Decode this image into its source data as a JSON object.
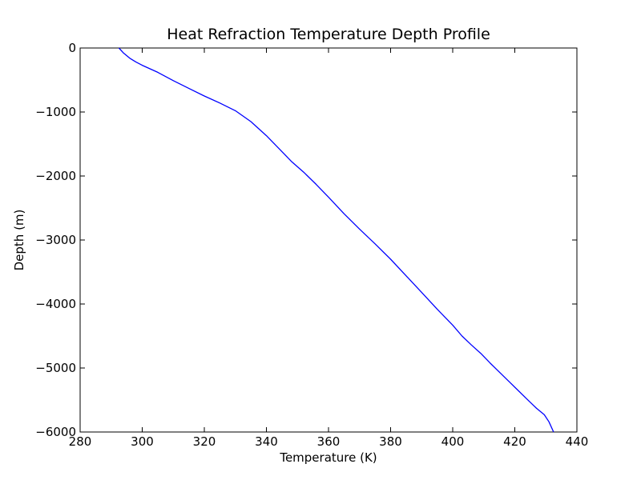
{
  "chart_data": {
    "type": "line",
    "title": "Heat Refraction Temperature Depth Profile",
    "xlabel": "Temperature (K)",
    "ylabel": "Depth (m)",
    "xlim": [
      280,
      440
    ],
    "ylim": [
      -6000,
      0
    ],
    "xticks": [
      280,
      300,
      320,
      340,
      360,
      380,
      400,
      420,
      440
    ],
    "yticks": [
      0,
      -1000,
      -2000,
      -3000,
      -4000,
      -5000,
      -6000
    ],
    "xtick_labels": [
      "280",
      "300",
      "320",
      "340",
      "360",
      "380",
      "400",
      "420",
      "440"
    ],
    "ytick_labels": [
      "0",
      "−1000",
      "−2000",
      "−3000",
      "−4000",
      "−5000",
      "−6000"
    ],
    "grid": false,
    "line_color": "#0000ff",
    "series": [
      {
        "x": [
          292.5,
          294,
          296,
          298,
          300,
          305,
          310,
          315,
          320,
          325,
          330,
          335,
          340,
          345,
          348,
          352,
          356,
          360,
          365,
          370,
          375,
          380,
          385,
          390,
          395,
          400,
          403,
          406,
          409,
          412,
          416,
          420,
          424,
          427,
          429.5,
          431,
          432.5
        ],
        "y": [
          0,
          -80,
          -160,
          -220,
          -270,
          -380,
          -510,
          -630,
          -750,
          -860,
          -980,
          -1150,
          -1370,
          -1620,
          -1770,
          -1940,
          -2130,
          -2330,
          -2590,
          -2830,
          -3060,
          -3300,
          -3560,
          -3820,
          -4080,
          -4330,
          -4500,
          -4640,
          -4770,
          -4920,
          -5110,
          -5300,
          -5490,
          -5630,
          -5730,
          -5840,
          -6000
        ]
      }
    ]
  }
}
